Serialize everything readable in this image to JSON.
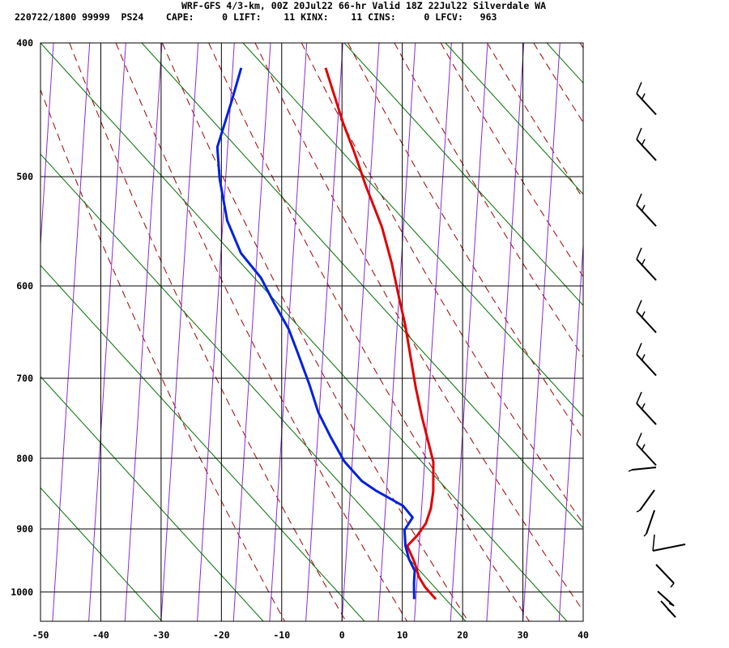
{
  "header": {
    "title": "WRF-GFS 4/3-km, 00Z 20Jul22 66-hr Valid 18Z 22Jul22 Silverdale WA",
    "info": "220722/1800 99999  PS24    CAPE:     0 LIFT:    11 KINX:    11 CINS:     0 LFCV:   963"
  },
  "chart_data": {
    "type": "line",
    "title": "WRF-GFS 4/3-km, 00Z 20Jul22 66-hr Valid 18Z 22Jul22 Silverdale WA",
    "xlabel": "",
    "ylabel": "",
    "xlim": [
      -50,
      40
    ],
    "ylim": [
      1050,
      400
    ],
    "x_ticks": [
      -50,
      -40,
      -30,
      -20,
      -10,
      0,
      10,
      20,
      30,
      40
    ],
    "y_ticks": [
      400,
      500,
      600,
      700,
      800,
      900,
      1000
    ],
    "y_scale": "log",
    "grid": true,
    "series": [
      {
        "name": "",
        "color": "#e00000",
        "points": [
          [
            -22.0,
            417
          ],
          [
            -17.2,
            457
          ],
          [
            -14.3,
            480
          ],
          [
            -11.3,
            507
          ],
          [
            -7.1,
            544
          ],
          [
            -4.2,
            578
          ],
          [
            -1.8,
            612
          ],
          [
            0.2,
            641
          ],
          [
            2.2,
            676
          ],
          [
            4.1,
            711
          ],
          [
            6.1,
            746
          ],
          [
            8.1,
            779
          ],
          [
            9.6,
            805
          ],
          [
            10.6,
            845
          ],
          [
            10.8,
            870
          ],
          [
            10.5,
            892
          ],
          [
            9.5,
            910
          ],
          [
            8.2,
            926
          ],
          [
            10.0,
            952
          ],
          [
            11.2,
            975
          ],
          [
            12.6,
            992
          ],
          [
            14.8,
            1012
          ]
        ]
      },
      {
        "name": "",
        "color": "#0020e0",
        "points": [
          [
            -36.0,
            417
          ],
          [
            -36.4,
            440
          ],
          [
            -37.2,
            476
          ],
          [
            -35.7,
            502
          ],
          [
            -33.0,
            538
          ],
          [
            -29.6,
            568
          ],
          [
            -25.4,
            592
          ],
          [
            -22.4,
            617
          ],
          [
            -19.0,
            645
          ],
          [
            -16.6,
            672
          ],
          [
            -13.6,
            708
          ],
          [
            -11.2,
            741
          ],
          [
            -8.3,
            772
          ],
          [
            -5.2,
            804
          ],
          [
            -1.6,
            831
          ],
          [
            1.0,
            844
          ],
          [
            6.1,
            866
          ],
          [
            8.1,
            883
          ],
          [
            7.2,
            902
          ],
          [
            7.9,
            926
          ],
          [
            8.9,
            946
          ],
          [
            10.3,
            965
          ],
          [
            10.6,
            985
          ],
          [
            11.2,
            1012
          ]
        ]
      }
    ]
  }
}
